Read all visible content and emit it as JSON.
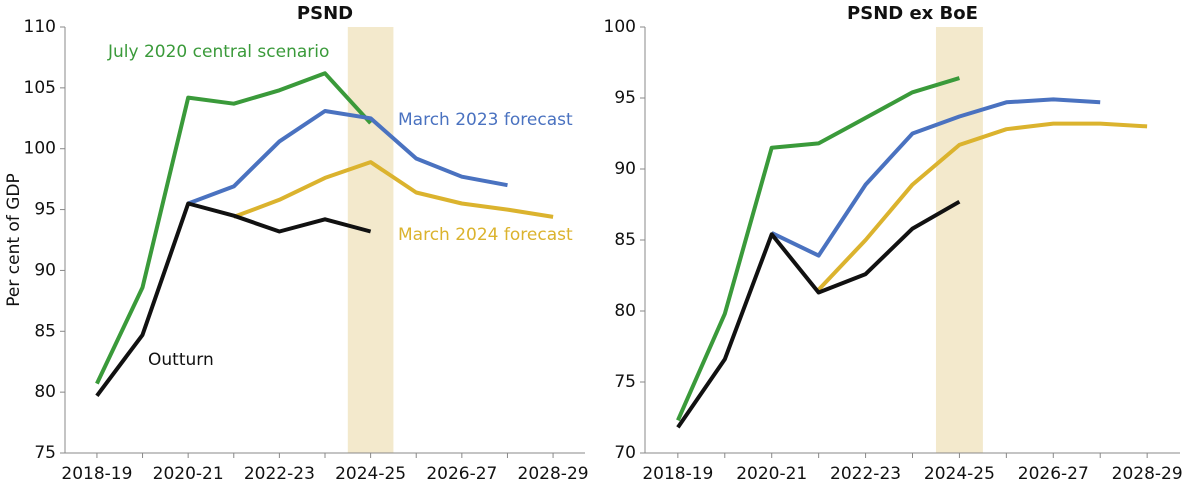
{
  "chart_data": [
    {
      "type": "line",
      "title": "PSND",
      "y_label": "Per cent of GDP",
      "categories": [
        "2018-19",
        null,
        "2020-21",
        null,
        "2022-23",
        null,
        "2024-25",
        null,
        "2026-27",
        null,
        "2028-29"
      ],
      "highlight": "2024-25",
      "highlight_color": "#f3e9cc",
      "ylim": [
        75,
        110
      ],
      "yticks": [
        75,
        80,
        85,
        90,
        95,
        100,
        105,
        110
      ],
      "series": [
        {
          "name": "July 2020 central scenario",
          "color": "#3a9a3a",
          "values": [
            80.7,
            88.6,
            104.2,
            103.7,
            104.8,
            106.2,
            102.1,
            null,
            null,
            null,
            null
          ]
        },
        {
          "name": "March 2023 forecast",
          "color": "#4a72c0",
          "values": [
            null,
            null,
            95.5,
            96.9,
            100.6,
            103.1,
            102.5,
            99.2,
            97.7,
            97.0,
            null
          ]
        },
        {
          "name": "March 2024 forecast",
          "color": "#dbb32e",
          "values": [
            null,
            null,
            null,
            94.4,
            95.8,
            97.6,
            98.9,
            96.4,
            95.5,
            95.0,
            94.4
          ]
        },
        {
          "name": "Outturn",
          "color": "#111111",
          "values": [
            79.7,
            84.7,
            95.5,
            94.5,
            93.2,
            94.2,
            93.2,
            null,
            null,
            null,
            null
          ]
        }
      ]
    },
    {
      "type": "line",
      "title": "PSND ex BoE",
      "categories": [
        "2018-19",
        null,
        "2020-21",
        null,
        "2022-23",
        null,
        "2024-25",
        null,
        "2026-27",
        null,
        "2028-29"
      ],
      "highlight": "2024-25",
      "highlight_color": "#f3e9cc",
      "ylim": [
        70,
        100
      ],
      "yticks": [
        70,
        75,
        80,
        85,
        90,
        95,
        100
      ],
      "series": [
        {
          "color": "#3a9a3a",
          "values": [
            72.3,
            79.8,
            91.5,
            91.8,
            93.6,
            95.4,
            96.4,
            null,
            null,
            null,
            null
          ]
        },
        {
          "color": "#4a72c0",
          "values": [
            null,
            null,
            85.5,
            83.9,
            88.9,
            92.5,
            93.7,
            94.7,
            94.9,
            94.7,
            null
          ]
        },
        {
          "color": "#dbb32e",
          "values": [
            null,
            null,
            null,
            81.5,
            85.0,
            88.9,
            91.7,
            92.8,
            93.2,
            93.2,
            93.0
          ]
        },
        {
          "color": "#111111",
          "values": [
            71.8,
            76.6,
            85.4,
            81.3,
            82.6,
            85.8,
            87.7,
            null,
            null,
            null,
            null
          ]
        }
      ]
    }
  ]
}
